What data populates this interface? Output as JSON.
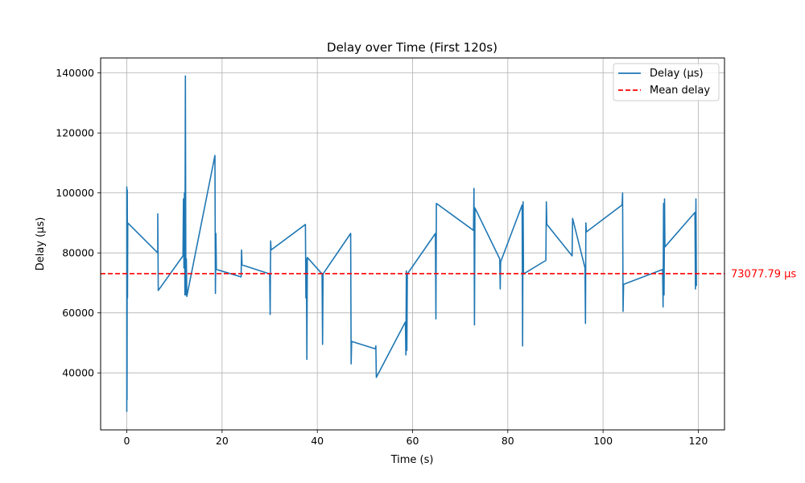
{
  "chart_data": {
    "type": "line",
    "title": "Delay over Time (First 120s)",
    "xlabel": "Time (s)",
    "ylabel": "Delay (µs)",
    "xlim": [
      -5.5,
      125.5
    ],
    "ylim": [
      21000,
      145000
    ],
    "xticks": [
      0,
      20,
      40,
      60,
      80,
      100,
      120
    ],
    "yticks": [
      40000,
      60000,
      80000,
      100000,
      120000,
      140000
    ],
    "grid": true,
    "legend_placement": "top-right",
    "series": [
      {
        "name": "Delay (µs)",
        "color": "#1f77b4",
        "points": [
          [
            0.0,
            27000
          ],
          [
            0.0,
            102000
          ],
          [
            0.05,
            31000
          ],
          [
            0.1,
            101000
          ],
          [
            0.15,
            65000
          ],
          [
            0.2,
            90000
          ],
          [
            6.5,
            80000
          ],
          [
            6.5,
            93000
          ],
          [
            6.6,
            67500
          ],
          [
            11.8,
            79000
          ],
          [
            11.9,
            98000
          ],
          [
            12.0,
            75000
          ],
          [
            12.1,
            100000
          ],
          [
            12.2,
            66000
          ],
          [
            12.3,
            139000
          ],
          [
            12.4,
            66000
          ],
          [
            12.5,
            78000
          ],
          [
            12.6,
            65500
          ],
          [
            18.5,
            112500
          ],
          [
            18.6,
            66500
          ],
          [
            18.7,
            86500
          ],
          [
            18.8,
            74500
          ],
          [
            24.0,
            72000
          ],
          [
            24.1,
            81000
          ],
          [
            24.2,
            76000
          ],
          [
            30.0,
            73000
          ],
          [
            30.1,
            59500
          ],
          [
            30.2,
            84000
          ],
          [
            30.3,
            81000
          ],
          [
            37.5,
            89500
          ],
          [
            37.6,
            65000
          ],
          [
            37.7,
            78000
          ],
          [
            37.8,
            44500
          ],
          [
            37.9,
            78500
          ],
          [
            41.0,
            73000
          ],
          [
            41.1,
            49500
          ],
          [
            41.2,
            73000
          ],
          [
            47.0,
            86500
          ],
          [
            47.1,
            43000
          ],
          [
            47.2,
            50500
          ],
          [
            52.2,
            48000
          ],
          [
            52.3,
            49000
          ],
          [
            52.4,
            38500
          ],
          [
            58.5,
            57000
          ],
          [
            58.6,
            46000
          ],
          [
            58.7,
            74000
          ],
          [
            58.8,
            47500
          ],
          [
            58.9,
            73000
          ],
          [
            64.8,
            86500
          ],
          [
            64.9,
            58000
          ],
          [
            65.0,
            96500
          ],
          [
            72.8,
            87500
          ],
          [
            72.9,
            101500
          ],
          [
            73.0,
            56000
          ],
          [
            73.1,
            95000
          ],
          [
            78.3,
            78000
          ],
          [
            78.4,
            68000
          ],
          [
            78.5,
            77000
          ],
          [
            83.0,
            96000
          ],
          [
            83.1,
            49000
          ],
          [
            83.2,
            97000
          ],
          [
            83.3,
            73000
          ],
          [
            88.0,
            77500
          ],
          [
            88.1,
            97000
          ],
          [
            88.2,
            89500
          ],
          [
            93.5,
            79000
          ],
          [
            93.6,
            91500
          ],
          [
            96.2,
            75000
          ],
          [
            96.3,
            56500
          ],
          [
            96.4,
            90000
          ],
          [
            96.5,
            87000
          ],
          [
            104.0,
            96000
          ],
          [
            104.1,
            100000
          ],
          [
            104.2,
            60500
          ],
          [
            104.3,
            69500
          ],
          [
            112.5,
            74500
          ],
          [
            112.6,
            62000
          ],
          [
            112.7,
            96500
          ],
          [
            112.8,
            66000
          ],
          [
            112.9,
            98000
          ],
          [
            113.0,
            82000
          ],
          [
            119.3,
            93500
          ],
          [
            119.4,
            68000
          ],
          [
            119.5,
            98000
          ],
          [
            119.6,
            69000
          ]
        ]
      },
      {
        "name": "Mean delay",
        "color": "#ff0000",
        "style": "dashed",
        "y": 73077.79
      }
    ],
    "annotations": [
      {
        "text": "73077.79 µs",
        "color": "#ff0000"
      }
    ]
  }
}
